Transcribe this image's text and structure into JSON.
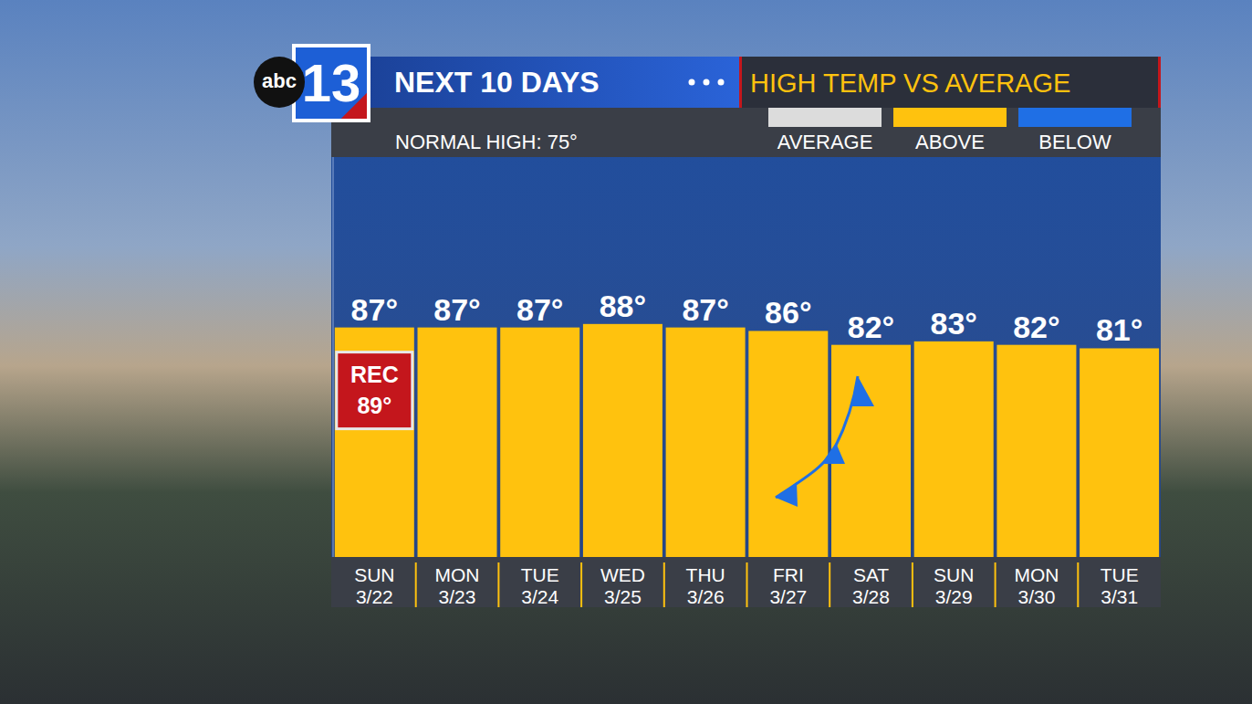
{
  "chart_data": {
    "type": "bar",
    "title": "NEXT 10 DAYS",
    "subtitle": "HIGH TEMP VS AVERAGE",
    "logo": {
      "network": "abc",
      "channel": "13"
    },
    "annotations": [
      "NORMAL HIGH: 75°"
    ],
    "legend": "top",
    "legend_items": [
      {
        "name": "AVERAGE",
        "color": "#dcdcdc"
      },
      {
        "name": "ABOVE",
        "color": "#ffc20e"
      },
      {
        "name": "BELOW",
        "color": "#1f6fe5"
      }
    ],
    "categories": [
      "SUN 3/22",
      "MON 3/23",
      "TUE 3/24",
      "WED 3/25",
      "THU 3/26",
      "FRI 3/27",
      "SAT 3/28",
      "SUN 3/29",
      "MON 3/30",
      "TUE 3/31"
    ],
    "values": [
      87,
      87,
      87,
      88,
      87,
      86,
      82,
      83,
      82,
      81
    ],
    "value_labels": [
      "87°",
      "87°",
      "87°",
      "88°",
      "87°",
      "86°",
      "82°",
      "83°",
      "82°",
      "81°"
    ],
    "data_labels": true,
    "color": "#ffc20e",
    "record": {
      "category": "SUN 3/22",
      "lines": [
        "REC",
        "89°"
      ]
    },
    "ylim": [
      21,
      136
    ],
    "yticks": [],
    "tick_labels": "x",
    "grid": false
  }
}
